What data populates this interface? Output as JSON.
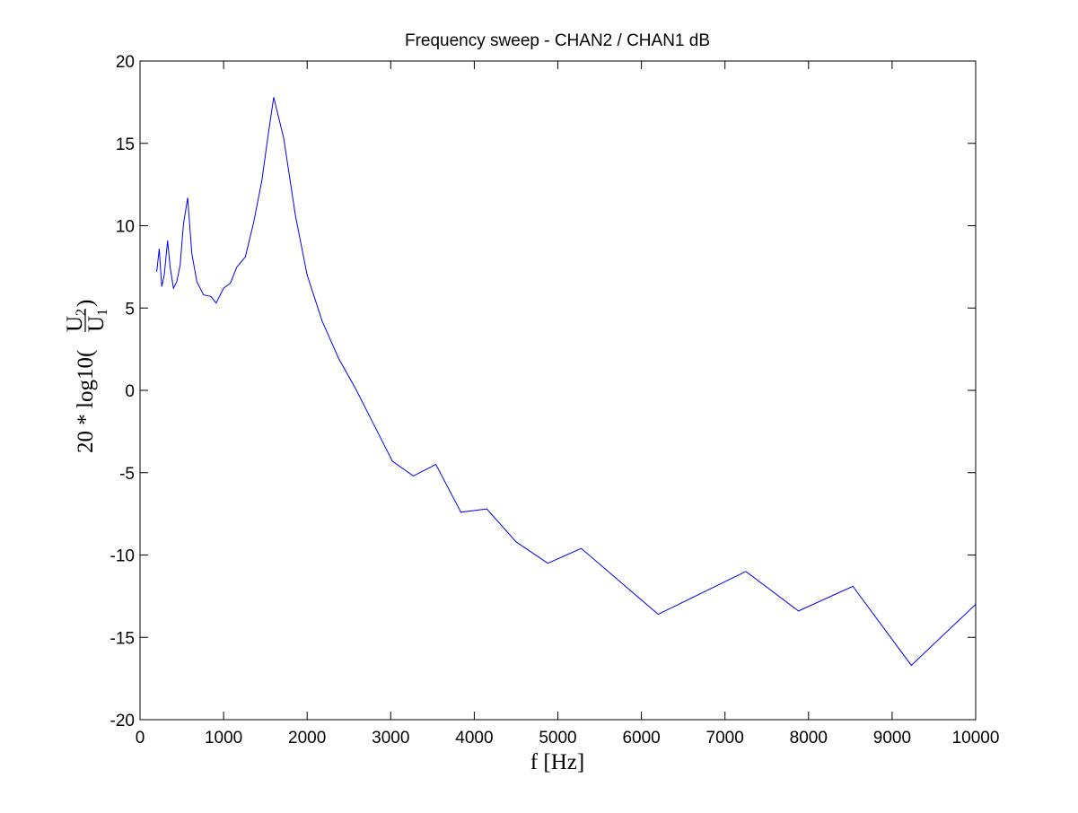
{
  "chart_data": {
    "type": "line",
    "title": "Frequency sweep - CHAN2 / CHAN1 dB",
    "xlabel": "f [Hz]",
    "ylabel": {
      "prefix": "20 * log10(",
      "numerator": "U",
      "numerator_sub": "2",
      "denominator": "U",
      "denominator_sub": "1",
      "suffix": ")"
    },
    "xlim": [
      0,
      10000
    ],
    "ylim": [
      -20,
      20
    ],
    "xticks": [
      0,
      1000,
      2000,
      3000,
      4000,
      5000,
      6000,
      7000,
      8000,
      9000,
      10000
    ],
    "yticks": [
      -20,
      -15,
      -10,
      -5,
      0,
      5,
      10,
      15,
      20
    ],
    "grid": false,
    "line_color": "#0000ff",
    "series": [
      {
        "x": [
          200,
          230,
          260,
          290,
          330,
          360,
          400,
          440,
          480,
          520,
          570,
          620,
          680,
          760,
          850,
          910,
          1000,
          1080,
          1160,
          1260,
          1360,
          1460,
          1530,
          1600,
          1720,
          1860,
          2000,
          2180,
          2380,
          2580,
          2800,
          3020,
          3270,
          3540,
          3840,
          4150,
          4500,
          4880,
          5280,
          6200,
          7250,
          7880,
          8530,
          9230,
          10000
        ],
        "y": [
          7.2,
          8.6,
          6.3,
          7.0,
          9.1,
          7.5,
          6.2,
          6.6,
          7.6,
          10.1,
          11.7,
          8.3,
          6.6,
          5.8,
          5.7,
          5.3,
          6.2,
          6.5,
          7.5,
          8.1,
          10.2,
          12.8,
          15.4,
          17.8,
          15.3,
          10.6,
          7.0,
          4.2,
          1.9,
          0.1,
          -2.1,
          -4.3,
          -5.2,
          -4.5,
          -7.4,
          -7.2,
          -9.2,
          -10.5,
          -9.6,
          -13.6,
          -11.0,
          -13.4,
          -11.9,
          -16.7,
          -13.0
        ]
      }
    ]
  }
}
